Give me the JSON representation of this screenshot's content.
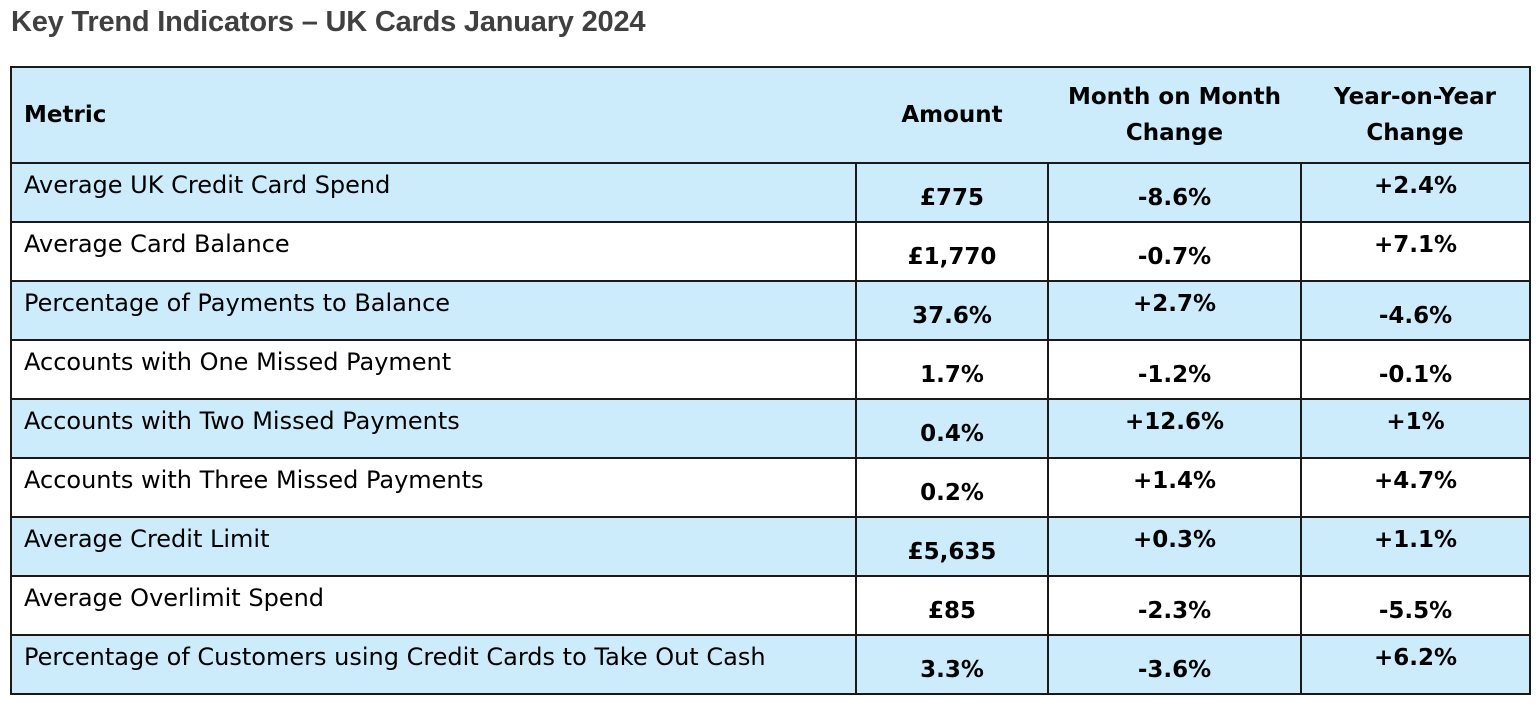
{
  "title": "Key Trend Indicators – UK Cards January 2024",
  "table": {
    "headers": {
      "metric": "Metric",
      "amount": "Amount",
      "mom_line1": "Month on Month",
      "mom_line2": "Change",
      "yoy_line1": "Year-on-Year",
      "yoy_line2": "Change"
    },
    "rows": [
      {
        "metric": "Average UK Credit Card Spend",
        "amount": "£775",
        "mom": "-8.6%",
        "yoy": "+2.4%"
      },
      {
        "metric": "Average Card Balance",
        "amount": "£1,770",
        "mom": "-0.7%",
        "yoy": "+7.1%"
      },
      {
        "metric": "Percentage of Payments to Balance",
        "amount": "37.6%",
        "mom": "+2.7%",
        "yoy": "-4.6%"
      },
      {
        "metric": "Accounts with One Missed Payment",
        "amount": "1.7%",
        "mom": "-1.2%",
        "yoy": "-0.1%"
      },
      {
        "metric": "Accounts with Two Missed Payments",
        "amount": "0.4%",
        "mom": "+12.6%",
        "yoy": "+1%"
      },
      {
        "metric": "Accounts with Three Missed Payments",
        "amount": "0.2%",
        "mom": "+1.4%",
        "yoy": "+4.7%"
      },
      {
        "metric": "Average Credit Limit",
        "amount": "£5,635",
        "mom": "+0.3%",
        "yoy": "+1.1%"
      },
      {
        "metric": "Average Overlimit Spend",
        "amount": "£85",
        "mom": "-2.3%",
        "yoy": "-5.5%"
      },
      {
        "metric": "Percentage of Customers using Credit Cards to Take Out Cash",
        "amount": "3.3%",
        "mom": "-3.6%",
        "yoy": "+6.2%"
      }
    ]
  },
  "colors": {
    "shaded_row": "#ccebfb",
    "plain_row": "#ffffff",
    "border": "#1a1a1a",
    "title_text": "#404040"
  }
}
